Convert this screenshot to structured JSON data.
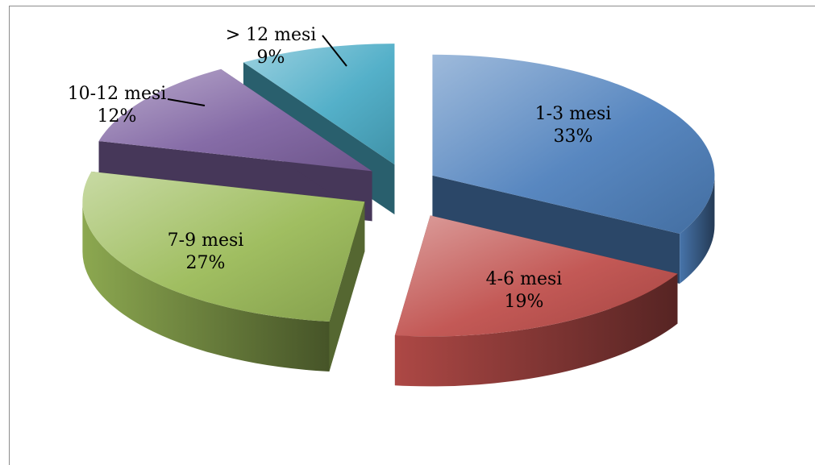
{
  "chart_data": {
    "type": "pie",
    "title": "",
    "style": "3d-exploded",
    "slices": [
      {
        "label": "1-3 mesi",
        "value": 33,
        "value_label": "33%",
        "color": "#4f81bd"
      },
      {
        "label": "4-6 mesi",
        "value": 19,
        "value_label": "19%",
        "color": "#c0504d"
      },
      {
        "label": "7-9 mesi",
        "value": 27,
        "value_label": "27%",
        "color": "#9bbb59"
      },
      {
        "label": "10-12 mesi",
        "value": 12,
        "value_label": "12%",
        "color": "#8064a2"
      },
      {
        "label": "> 12 mesi",
        "value": 9,
        "value_label": "9%",
        "color": "#4bacc6"
      }
    ]
  }
}
